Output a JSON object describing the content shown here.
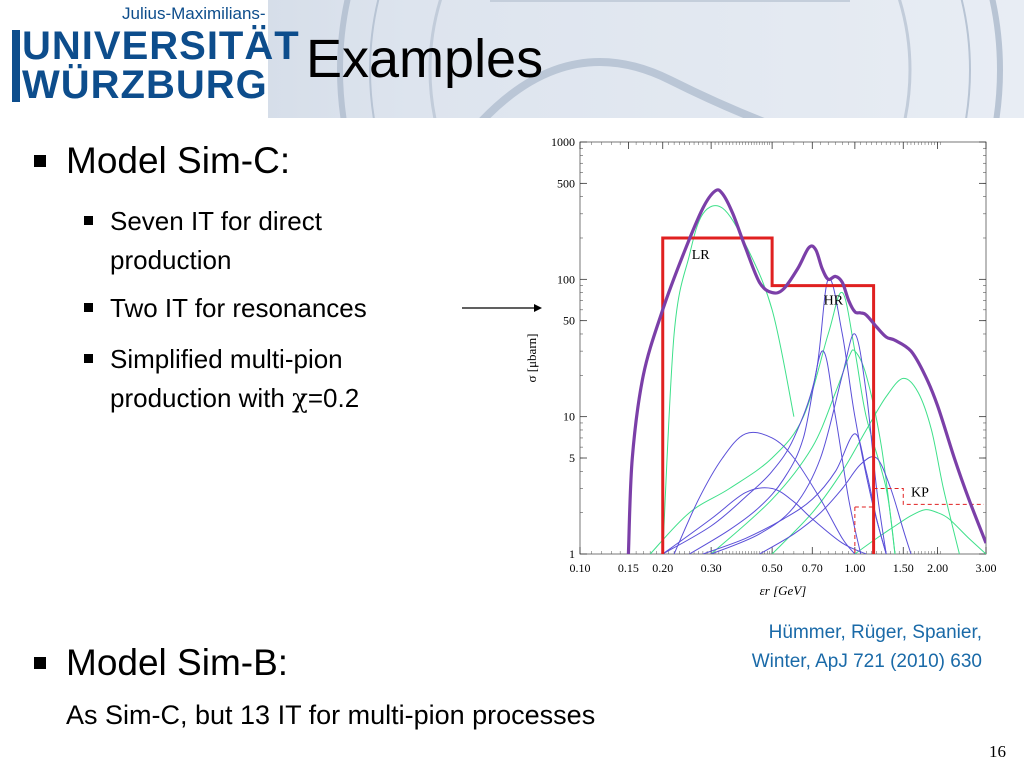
{
  "header": {
    "logo_line1": "Julius-Maximilians-",
    "logo_line2": "UNIVERSITÄT",
    "logo_line3": "WÜRZBURG"
  },
  "slide": {
    "title": "Examples",
    "sim_c": {
      "heading": "Model Sim-C:",
      "items": [
        {
          "line1": "Seven IT for direct",
          "line2": "production"
        },
        {
          "line1": "Two IT for resonances"
        },
        {
          "line1": "Simplified multi-pion",
          "line2_pre": "production with ",
          "chi": "χ",
          "line2_post": "=0.2"
        }
      ]
    },
    "sim_b": {
      "heading": "Model Sim-B:",
      "sub": "As Sim-C, but 13 IT for multi-pion processes"
    },
    "citation": {
      "line1": "Hümmer, Rüger, Spanier,",
      "line2": "Winter,  ApJ 721 (2010) 630"
    },
    "page_number": "16"
  },
  "chart_data": {
    "type": "line",
    "xlabel": "εr [GeV]",
    "ylabel": "σ [μbarn]",
    "x_scale": "log",
    "y_scale": "log",
    "xlim": [
      0.1,
      3.0
    ],
    "ylim": [
      1,
      1000
    ],
    "x_ticks": [
      0.1,
      0.15,
      0.2,
      0.3,
      0.5,
      0.7,
      1.0,
      1.5,
      2.0,
      3.0
    ],
    "x_tick_labels": [
      "0.10",
      "0.15",
      "0.20",
      "0.30",
      "0.50",
      "0.70",
      "1.00",
      "1.50",
      "2.00",
      "3.00"
    ],
    "y_ticks": [
      1,
      5,
      10,
      50,
      100,
      500,
      1000
    ],
    "y_tick_labels": [
      "1",
      "5",
      "10",
      "50",
      "100",
      "500",
      "1000"
    ],
    "colors": {
      "total": "#7b3fa8",
      "steps": "#e02020",
      "blue": "#5a4fd8",
      "green": "#3ee08a",
      "dash": "#e02020"
    },
    "total": {
      "x": [
        0.15,
        0.155,
        0.17,
        0.2,
        0.24,
        0.28,
        0.31,
        0.33,
        0.36,
        0.4,
        0.45,
        0.5,
        0.55,
        0.62,
        0.68,
        0.72,
        0.76,
        0.8,
        0.85,
        0.9,
        0.95,
        1.0,
        1.05,
        1.1,
        1.2,
        1.3,
        1.4,
        1.6,
        1.8,
        2.0,
        2.3,
        2.6,
        3.0
      ],
      "y": [
        1.0,
        5.0,
        20,
        60,
        160,
        330,
        440,
        420,
        300,
        170,
        95,
        80,
        85,
        120,
        170,
        165,
        120,
        100,
        105,
        95,
        70,
        58,
        57,
        55,
        45,
        38,
        36,
        30,
        20,
        12,
        5,
        2.5,
        1.2
      ]
    },
    "step_regions": [
      {
        "label": "LR",
        "x0": 0.2,
        "x1": 0.5,
        "y": 200
      },
      {
        "label": "HR",
        "x0": 0.5,
        "x1": 1.17,
        "y": 90
      },
      {
        "label": "KP",
        "x0": 1.17,
        "x1": 3.0,
        "y": 3.0,
        "y_low": 2.2,
        "dashed": true
      }
    ],
    "component_curves": {
      "green": [
        {
          "x": [
            0.2,
            0.22,
            0.25,
            0.28,
            0.33,
            0.4,
            0.5,
            0.6
          ],
          "y": [
            1,
            40,
            150,
            300,
            330,
            180,
            60,
            10
          ]
        },
        {
          "x": [
            0.18,
            0.25,
            0.35,
            0.5,
            0.65,
            0.8,
            0.9,
            1.0,
            1.1,
            1.3,
            1.4
          ],
          "y": [
            1,
            2,
            3,
            5,
            10,
            40,
            80,
            30,
            10,
            3,
            1
          ]
        },
        {
          "x": [
            0.3,
            0.5,
            0.7,
            0.85,
            0.95,
            1.0,
            1.1,
            1.25,
            1.4
          ],
          "y": [
            1,
            2.5,
            6,
            15,
            27,
            30,
            20,
            6,
            1
          ]
        },
        {
          "x": [
            0.5,
            0.7,
            0.9,
            1.1,
            1.3,
            1.5,
            1.7,
            1.9,
            2.1,
            2.4
          ],
          "y": [
            1,
            2,
            4,
            8,
            14,
            19,
            15,
            8,
            3,
            1
          ]
        },
        {
          "x": [
            1.0,
            1.2,
            1.4,
            1.6,
            1.8,
            2.0,
            2.2,
            2.6,
            3.0
          ],
          "y": [
            1,
            1.3,
            1.6,
            1.9,
            2.1,
            2.0,
            1.8,
            1.3,
            1
          ]
        }
      ],
      "blue": [
        {
          "x": [
            0.2,
            0.3,
            0.4,
            0.5,
            0.6,
            0.72,
            0.8,
            0.9,
            1.0,
            1.15,
            1.3
          ],
          "y": [
            1,
            1.6,
            2.6,
            4,
            7,
            20,
            100,
            40,
            10,
            2.5,
            1
          ]
        },
        {
          "x": [
            0.25,
            0.35,
            0.45,
            0.55,
            0.65,
            0.76,
            0.85,
            0.95,
            1.05
          ],
          "y": [
            1,
            1.5,
            2.2,
            3.5,
            7,
            30,
            10,
            2.5,
            1
          ]
        },
        {
          "x": [
            0.3,
            0.45,
            0.6,
            0.75,
            0.9,
            1.0,
            1.1,
            1.2,
            1.3
          ],
          "y": [
            1,
            1.4,
            2.2,
            5,
            20,
            40,
            15,
            3,
            1
          ]
        },
        {
          "x": [
            0.22,
            0.27,
            0.33,
            0.4,
            0.5,
            0.6,
            0.75,
            0.9,
            1.0
          ],
          "y": [
            1,
            2.5,
            5,
            7.5,
            7,
            5,
            2.5,
            1.3,
            1
          ]
        },
        {
          "x": [
            0.28,
            0.4,
            0.55,
            0.7,
            0.85,
            1.0,
            1.1,
            1.2,
            1.3
          ],
          "y": [
            1,
            1.3,
            1.8,
            2.5,
            4,
            7.5,
            4,
            1.8,
            1
          ]
        },
        {
          "x": [
            0.45,
            0.6,
            0.75,
            0.9,
            1.05,
            1.2,
            1.35,
            1.5,
            1.6
          ],
          "y": [
            1,
            1.4,
            2,
            3,
            4.5,
            5,
            3,
            1.5,
            1
          ]
        },
        {
          "x": [
            0.2,
            0.3,
            0.4,
            0.5,
            0.6,
            0.7,
            0.9,
            1.1
          ],
          "y": [
            1,
            1.8,
            2.8,
            3,
            2.4,
            1.8,
            1.2,
            1
          ]
        }
      ]
    }
  }
}
